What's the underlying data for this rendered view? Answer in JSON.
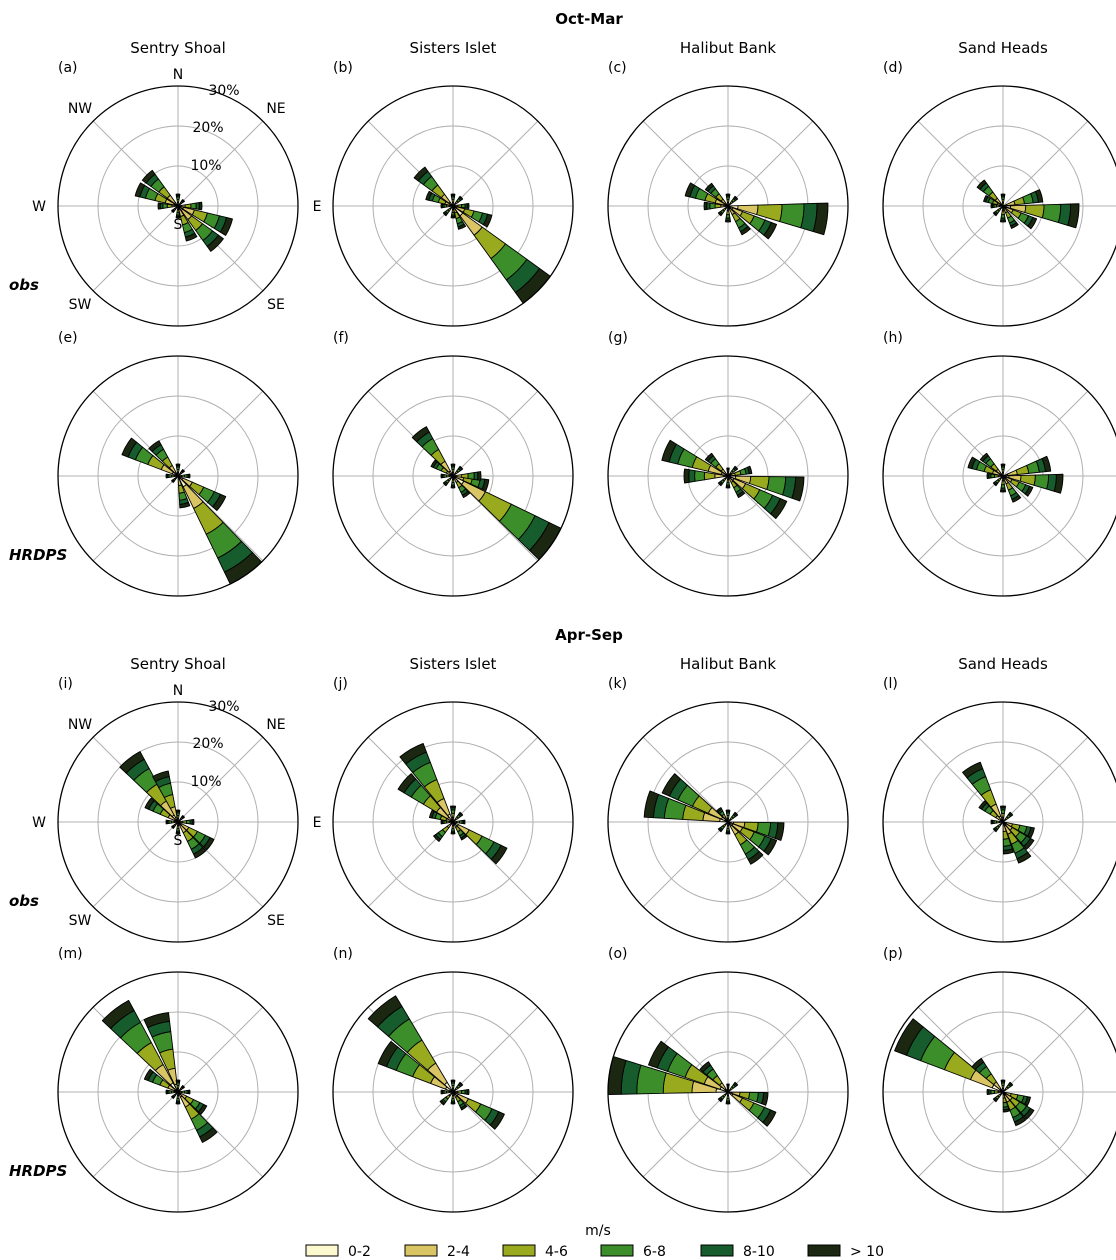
{
  "titles": {
    "season_top": "Oct-Mar",
    "season_bottom": "Apr-Sep",
    "stations": [
      "Sentry Shoal",
      "Sisters Islet",
      "Halibut Bank",
      "Sand Heads"
    ],
    "rows": [
      "obs",
      "HRDPS"
    ]
  },
  "compass": {
    "N": "N",
    "NE": "NE",
    "E": "E",
    "SE": "SE",
    "S": "S",
    "SW": "SW",
    "W": "W",
    "NW": "NW"
  },
  "rings": [
    "10%",
    "20%",
    "30%"
  ],
  "legend": {
    "title": "m/s",
    "bins": [
      "0-2",
      "2-4",
      "4-6",
      "6-8",
      "8-10",
      "> 10"
    ],
    "colors": [
      "#fdf9cf",
      "#d9c563",
      "#9aaa1e",
      "#3c8e2a",
      "#165c2c",
      "#1b2711"
    ]
  },
  "chart_data": [
    {
      "panel": "(a)",
      "season": "Oct-Mar",
      "station": "Sentry Shoal",
      "source": "obs",
      "type": "windrose",
      "rmax": 30,
      "petals": [
        {
          "dir": 112.5,
          "total": 14
        },
        {
          "dir": 135,
          "total": 14
        },
        {
          "dir": 157.5,
          "total": 9
        },
        {
          "dir": 292.5,
          "total": 11
        },
        {
          "dir": 315,
          "total": 11
        },
        {
          "dir": 270,
          "total": 5
        },
        {
          "dir": 0,
          "total": 3
        },
        {
          "dir": 45,
          "total": 2
        },
        {
          "dir": 90,
          "total": 6
        },
        {
          "dir": 180,
          "total": 3
        },
        {
          "dir": 225,
          "total": 2
        }
      ]
    },
    {
      "panel": "(b)",
      "season": "Oct-Mar",
      "station": "Sisters Islet",
      "source": "obs",
      "type": "windrose",
      "rmax": 30,
      "petals": [
        {
          "dir": 135,
          "total": 30
        },
        {
          "dir": 112.5,
          "total": 10
        },
        {
          "dir": 157.5,
          "total": 6
        },
        {
          "dir": 315,
          "total": 12
        },
        {
          "dir": 292.5,
          "total": 7
        },
        {
          "dir": 270,
          "total": 3
        },
        {
          "dir": 0,
          "total": 3
        },
        {
          "dir": 45,
          "total": 3
        },
        {
          "dir": 90,
          "total": 4
        },
        {
          "dir": 180,
          "total": 3
        },
        {
          "dir": 225,
          "total": 3
        }
      ]
    },
    {
      "panel": "(c)",
      "season": "Oct-Mar",
      "station": "Halibut Bank",
      "source": "obs",
      "type": "windrose",
      "rmax": 30,
      "petals": [
        {
          "dir": 97.5,
          "total": 25
        },
        {
          "dir": 120,
          "total": 13
        },
        {
          "dir": 145,
          "total": 8
        },
        {
          "dir": 292.5,
          "total": 11
        },
        {
          "dir": 315,
          "total": 7
        },
        {
          "dir": 270,
          "total": 6
        },
        {
          "dir": 0,
          "total": 3
        },
        {
          "dir": 45,
          "total": 3
        },
        {
          "dir": 180,
          "total": 4
        },
        {
          "dir": 225,
          "total": 3
        }
      ]
    },
    {
      "panel": "(d)",
      "season": "Oct-Mar",
      "station": "Sand Heads",
      "source": "obs",
      "type": "windrose",
      "rmax": 30,
      "petals": [
        {
          "dir": 97.5,
          "total": 19
        },
        {
          "dir": 75,
          "total": 10
        },
        {
          "dir": 120,
          "total": 9
        },
        {
          "dir": 150,
          "total": 6
        },
        {
          "dir": 315,
          "total": 8
        },
        {
          "dir": 292.5,
          "total": 5
        },
        {
          "dir": 0,
          "total": 3
        },
        {
          "dir": 180,
          "total": 4
        },
        {
          "dir": 225,
          "total": 3
        },
        {
          "dir": 270,
          "total": 3
        }
      ]
    },
    {
      "panel": "(e)",
      "season": "Oct-Mar",
      "station": "Sentry Shoal",
      "source": "HRDPS",
      "type": "windrose",
      "rmax": 30,
      "petals": [
        {
          "dir": 145,
          "total": 30
        },
        {
          "dir": 122.5,
          "total": 13
        },
        {
          "dir": 167.5,
          "total": 8
        },
        {
          "dir": 300,
          "total": 15
        },
        {
          "dir": 322.5,
          "total": 10
        },
        {
          "dir": 270,
          "total": 3
        },
        {
          "dir": 0,
          "total": 3
        },
        {
          "dir": 45,
          "total": 2
        },
        {
          "dir": 90,
          "total": 3
        },
        {
          "dir": 225,
          "total": 2
        }
      ]
    },
    {
      "panel": "(f)",
      "season": "Oct-Mar",
      "station": "Sisters Islet",
      "source": "HRDPS",
      "type": "windrose",
      "rmax": 30,
      "petals": [
        {
          "dir": 125,
          "total": 30
        },
        {
          "dir": 105,
          "total": 9
        },
        {
          "dir": 145,
          "total": 6
        },
        {
          "dir": 322.5,
          "total": 14
        },
        {
          "dir": 302.5,
          "total": 6
        },
        {
          "dir": 270,
          "total": 3
        },
        {
          "dir": 0,
          "total": 3
        },
        {
          "dir": 45,
          "total": 3
        },
        {
          "dir": 90,
          "total": 7
        },
        {
          "dir": 180,
          "total": 3
        },
        {
          "dir": 225,
          "total": 3
        }
      ]
    },
    {
      "panel": "(g)",
      "season": "Oct-Mar",
      "station": "Halibut Bank",
      "source": "HRDPS",
      "type": "windrose",
      "rmax": 30,
      "petals": [
        {
          "dir": 100,
          "total": 19
        },
        {
          "dir": 122.5,
          "total": 16
        },
        {
          "dir": 145,
          "total": 6
        },
        {
          "dir": 292.5,
          "total": 17
        },
        {
          "dir": 270,
          "total": 11
        },
        {
          "dir": 315,
          "total": 7
        },
        {
          "dir": 0,
          "total": 2
        },
        {
          "dir": 45,
          "total": 3
        },
        {
          "dir": 75,
          "total": 6
        },
        {
          "dir": 180,
          "total": 3
        },
        {
          "dir": 225,
          "total": 3
        }
      ]
    },
    {
      "panel": "(h)",
      "season": "Oct-Mar",
      "station": "Sand Heads",
      "source": "HRDPS",
      "type": "windrose",
      "rmax": 30,
      "petals": [
        {
          "dir": 97.5,
          "total": 15
        },
        {
          "dir": 75,
          "total": 12
        },
        {
          "dir": 120,
          "total": 8
        },
        {
          "dir": 150,
          "total": 7
        },
        {
          "dir": 292.5,
          "total": 9
        },
        {
          "dir": 315,
          "total": 7
        },
        {
          "dir": 270,
          "total": 4
        },
        {
          "dir": 0,
          "total": 3
        },
        {
          "dir": 180,
          "total": 4
        },
        {
          "dir": 225,
          "total": 3
        }
      ]
    },
    {
      "panel": "(i)",
      "season": "Apr-Sep",
      "station": "Sentry Shoal",
      "source": "obs",
      "type": "windrose",
      "rmax": 30,
      "petals": [
        {
          "dir": 322.5,
          "total": 20
        },
        {
          "dir": 340,
          "total": 13
        },
        {
          "dir": 302.5,
          "total": 9
        },
        {
          "dir": 125,
          "total": 10
        },
        {
          "dir": 145,
          "total": 10
        },
        {
          "dir": 270,
          "total": 3
        },
        {
          "dir": 0,
          "total": 3
        },
        {
          "dir": 45,
          "total": 2
        },
        {
          "dir": 90,
          "total": 4
        },
        {
          "dir": 180,
          "total": 3
        },
        {
          "dir": 225,
          "total": 2
        }
      ]
    },
    {
      "panel": "(j)",
      "season": "Apr-Sep",
      "station": "Sisters Islet",
      "source": "obs",
      "type": "windrose",
      "rmax": 30,
      "petals": [
        {
          "dir": 330,
          "total": 21
        },
        {
          "dir": 310,
          "total": 16
        },
        {
          "dir": 125,
          "total": 15
        },
        {
          "dir": 290,
          "total": 6
        },
        {
          "dir": 145,
          "total": 5
        },
        {
          "dir": 0,
          "total": 4
        },
        {
          "dir": 45,
          "total": 3
        },
        {
          "dir": 90,
          "total": 3
        },
        {
          "dir": 180,
          "total": 3
        },
        {
          "dir": 225,
          "total": 6
        },
        {
          "dir": 270,
          "total": 3
        }
      ]
    },
    {
      "panel": "(k)",
      "season": "Apr-Sep",
      "station": "Halibut Bank",
      "source": "obs",
      "type": "windrose",
      "rmax": 30,
      "petals": [
        {
          "dir": 282.5,
          "total": 21
        },
        {
          "dir": 303,
          "total": 18
        },
        {
          "dir": 100,
          "total": 14
        },
        {
          "dir": 120,
          "total": 13
        },
        {
          "dir": 142.5,
          "total": 12
        },
        {
          "dir": 325,
          "total": 4
        },
        {
          "dir": 0,
          "total": 3
        },
        {
          "dir": 45,
          "total": 3
        },
        {
          "dir": 180,
          "total": 3
        },
        {
          "dir": 225,
          "total": 3
        }
      ]
    },
    {
      "panel": "(l)",
      "season": "Apr-Sep",
      "station": "Sand Heads",
      "source": "obs",
      "type": "windrose",
      "rmax": 30,
      "petals": [
        {
          "dir": 330,
          "total": 16
        },
        {
          "dir": 310,
          "total": 7
        },
        {
          "dir": 110,
          "total": 8
        },
        {
          "dir": 130,
          "total": 9
        },
        {
          "dir": 150,
          "total": 11
        },
        {
          "dir": 170,
          "total": 8
        },
        {
          "dir": 0,
          "total": 4
        },
        {
          "dir": 45,
          "total": 3
        },
        {
          "dir": 225,
          "total": 3
        },
        {
          "dir": 270,
          "total": 3
        }
      ]
    },
    {
      "panel": "(m)",
      "season": "Apr-Sep",
      "station": "Sentry Shoal",
      "source": "HRDPS",
      "type": "windrose",
      "rmax": 30,
      "petals": [
        {
          "dir": 322.5,
          "total": 26
        },
        {
          "dir": 344,
          "total": 20
        },
        {
          "dir": 300,
          "total": 9
        },
        {
          "dir": 145,
          "total": 14
        },
        {
          "dir": 125,
          "total": 8
        },
        {
          "dir": 0,
          "total": 3
        },
        {
          "dir": 45,
          "total": 2
        },
        {
          "dir": 90,
          "total": 3
        },
        {
          "dir": 180,
          "total": 3
        },
        {
          "dir": 225,
          "total": 2
        },
        {
          "dir": 270,
          "total": 3
        }
      ]
    },
    {
      "panel": "(n)",
      "season": "Apr-Sep",
      "station": "Sisters Islet",
      "source": "HRDPS",
      "type": "windrose",
      "rmax": 30,
      "petals": [
        {
          "dir": 320,
          "total": 28
        },
        {
          "dir": 300,
          "total": 20
        },
        {
          "dir": 122.5,
          "total": 14
        },
        {
          "dir": 145,
          "total": 5
        },
        {
          "dir": 0,
          "total": 3
        },
        {
          "dir": 45,
          "total": 3
        },
        {
          "dir": 90,
          "total": 4
        },
        {
          "dir": 180,
          "total": 3
        },
        {
          "dir": 225,
          "total": 4
        },
        {
          "dir": 270,
          "total": 3
        }
      ]
    },
    {
      "panel": "(o)",
      "season": "Apr-Sep",
      "station": "Halibut Bank",
      "source": "HRDPS",
      "type": "windrose",
      "rmax": 30,
      "petals": [
        {
          "dir": 278,
          "total": 30
        },
        {
          "dir": 298,
          "total": 21
        },
        {
          "dir": 318,
          "total": 9
        },
        {
          "dir": 100,
          "total": 10
        },
        {
          "dir": 122,
          "total": 13
        },
        {
          "dir": 0,
          "total": 2
        },
        {
          "dir": 45,
          "total": 3
        },
        {
          "dir": 180,
          "total": 3
        },
        {
          "dir": 225,
          "total": 3
        }
      ]
    },
    {
      "panel": "(p)",
      "season": "Apr-Sep",
      "station": "Sand Heads",
      "source": "HRDPS",
      "type": "windrose",
      "rmax": 30,
      "petals": [
        {
          "dir": 300,
          "total": 29
        },
        {
          "dir": 318,
          "total": 10
        },
        {
          "dir": 110,
          "total": 7
        },
        {
          "dir": 130,
          "total": 9
        },
        {
          "dir": 150,
          "total": 9
        },
        {
          "dir": 170,
          "total": 5
        },
        {
          "dir": 0,
          "total": 3
        },
        {
          "dir": 45,
          "total": 3
        },
        {
          "dir": 225,
          "total": 3
        },
        {
          "dir": 270,
          "total": 4
        }
      ]
    }
  ]
}
